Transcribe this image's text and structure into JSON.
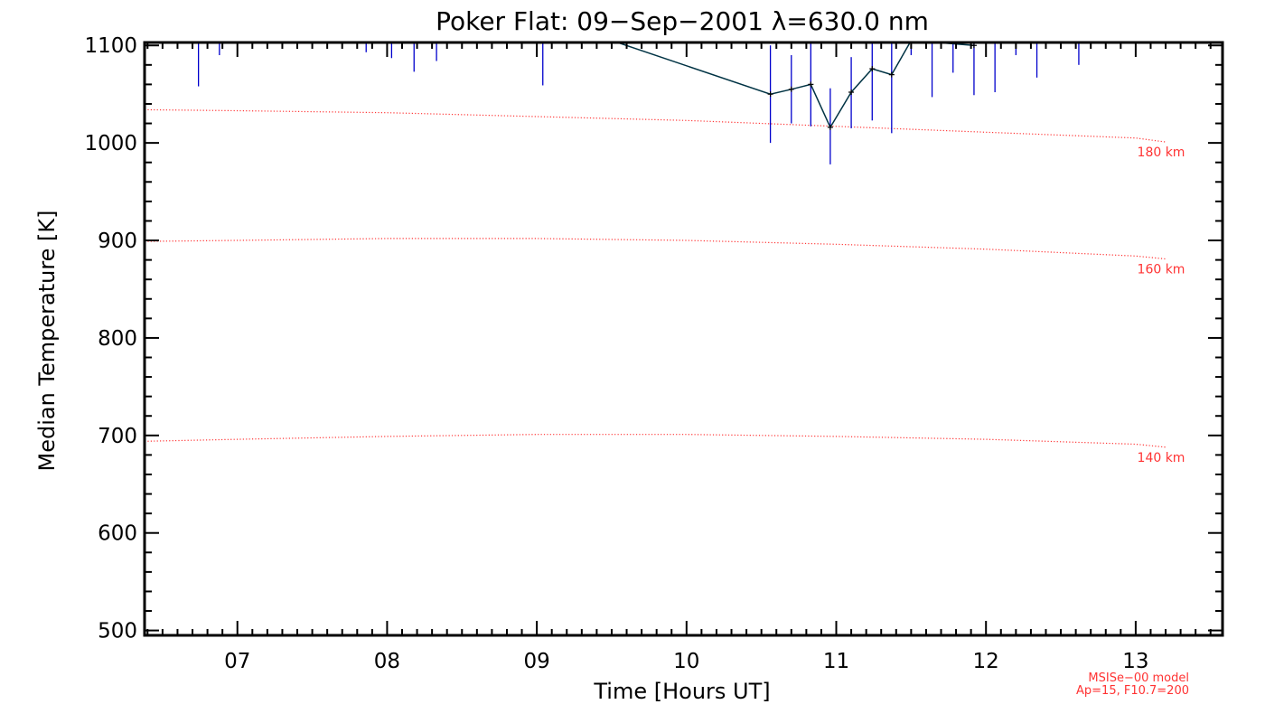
{
  "chart_data": {
    "type": "line",
    "title": "Poker Flat: 09−Sep−2001 λ=630.0 nm",
    "xlabel": "Time [Hours UT]",
    "ylabel": "Median Temperature [K]",
    "xlim": [
      6.38,
      13.58
    ],
    "ylim": [
      495,
      1103
    ],
    "x_ticks": [
      7,
      8,
      9,
      10,
      11,
      12,
      13
    ],
    "x_tick_labels": [
      "07",
      "08",
      "09",
      "10",
      "11",
      "12",
      "13"
    ],
    "y_ticks": [
      500,
      600,
      700,
      800,
      900,
      1000,
      1100
    ],
    "y_tick_labels": [
      "500",
      "600",
      "700",
      "800",
      "900",
      "1000",
      "1100"
    ],
    "grid": false,
    "series": [
      {
        "kind": "median",
        "color": "#003344",
        "x": [
          9.5,
          10.56,
          10.7,
          10.83,
          10.96,
          11.1,
          11.24,
          11.37,
          11.5,
          11.92
        ],
        "y": [
          1105,
          1050,
          1055,
          1060,
          1016,
          1052,
          1076,
          1070,
          1105,
          1100
        ]
      },
      {
        "kind": "error-bars",
        "color": "#0000cc",
        "points": [
          {
            "x": 6.74,
            "low": 1058,
            "high": 1105
          },
          {
            "x": 6.88,
            "low": 1090,
            "high": 1105
          },
          {
            "x": 7.86,
            "low": 1093,
            "high": 1105
          },
          {
            "x": 8.03,
            "low": 1087,
            "high": 1105
          },
          {
            "x": 8.18,
            "low": 1073,
            "high": 1105
          },
          {
            "x": 8.33,
            "low": 1084,
            "high": 1105
          },
          {
            "x": 9.04,
            "low": 1059,
            "high": 1105
          },
          {
            "x": 10.56,
            "low": 1000,
            "high": 1100
          },
          {
            "x": 10.7,
            "low": 1020,
            "high": 1090
          },
          {
            "x": 10.83,
            "low": 1017,
            "high": 1105
          },
          {
            "x": 10.96,
            "low": 978,
            "high": 1056
          },
          {
            "x": 11.1,
            "low": 1015,
            "high": 1088
          },
          {
            "x": 11.24,
            "low": 1023,
            "high": 1105
          },
          {
            "x": 11.37,
            "low": 1010,
            "high": 1105
          },
          {
            "x": 11.5,
            "low": 1090,
            "high": 1105
          },
          {
            "x": 11.64,
            "low": 1047,
            "high": 1105
          },
          {
            "x": 11.78,
            "low": 1072,
            "high": 1105
          },
          {
            "x": 11.92,
            "low": 1049,
            "high": 1105
          },
          {
            "x": 12.06,
            "low": 1052,
            "high": 1105
          },
          {
            "x": 12.2,
            "low": 1090,
            "high": 1105
          },
          {
            "x": 12.34,
            "low": 1067,
            "high": 1105
          },
          {
            "x": 12.62,
            "low": 1080,
            "high": 1105
          }
        ]
      },
      {
        "kind": "model",
        "name": "180 km",
        "color": "#ff3333",
        "x": [
          6.38,
          7.0,
          8.0,
          9.0,
          10.0,
          11.0,
          12.0,
          13.0,
          13.2
        ],
        "y": [
          1034,
          1033,
          1031,
          1027,
          1023,
          1017,
          1011,
          1005,
          1001
        ]
      },
      {
        "kind": "model",
        "name": "160 km",
        "color": "#ff3333",
        "x": [
          6.38,
          7.0,
          8.0,
          9.0,
          10.0,
          11.0,
          12.0,
          13.0,
          13.2
        ],
        "y": [
          899,
          900,
          902,
          902,
          900,
          896,
          891,
          884,
          881
        ]
      },
      {
        "kind": "model",
        "name": "140 km",
        "color": "#ff3333",
        "x": [
          6.38,
          7.0,
          8.0,
          9.0,
          10.0,
          11.0,
          12.0,
          13.0,
          13.2
        ],
        "y": [
          694,
          696,
          699,
          701,
          701,
          699,
          696,
          691,
          688
        ]
      }
    ],
    "model_label_color": "#ff3333",
    "annotations": [
      "MSISe−00 model",
      "Ap=15, F10.7=200"
    ]
  }
}
